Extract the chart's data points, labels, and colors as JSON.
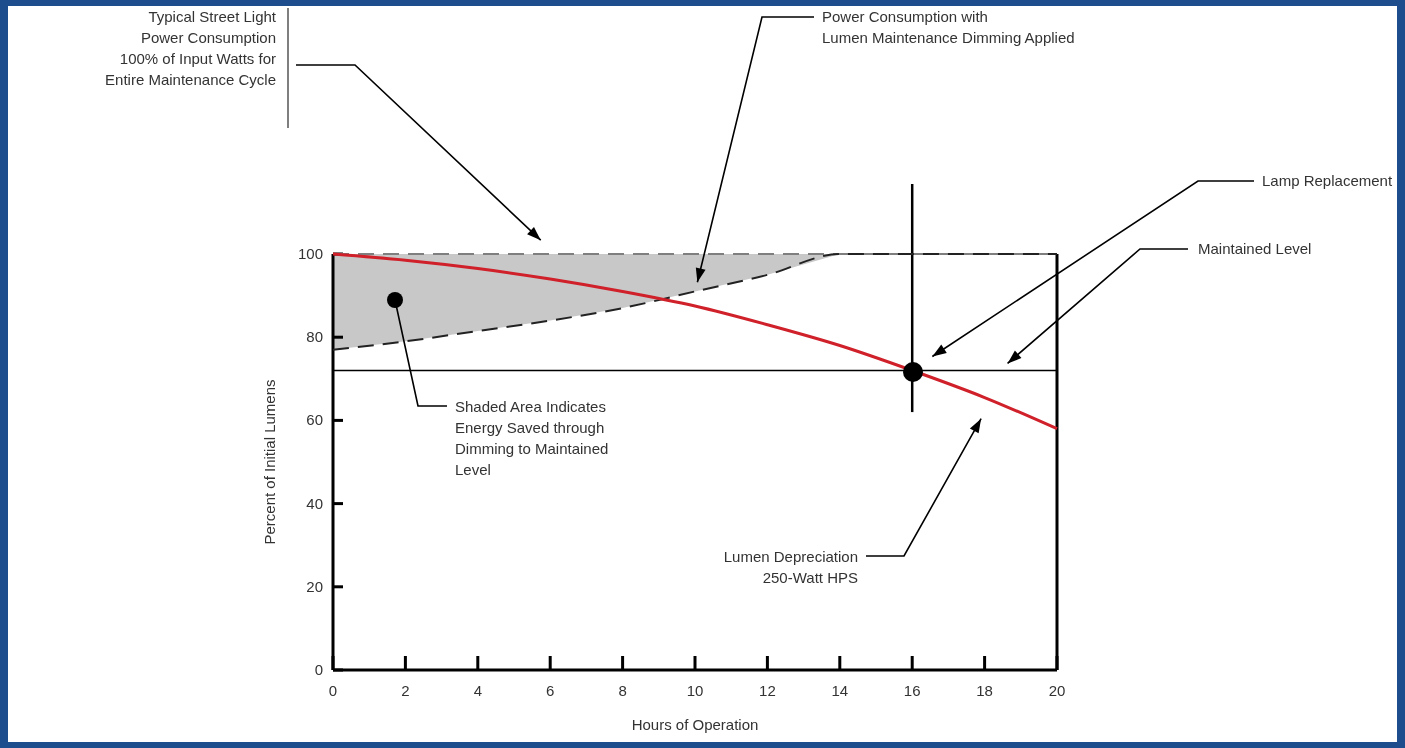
{
  "chart_data": {
    "type": "line",
    "xlabel": "Hours of Operation",
    "ylabel": "Percent of Initial Lumens",
    "x": [
      0,
      2,
      4,
      6,
      8,
      10,
      12,
      14,
      16,
      18,
      20
    ],
    "series": [
      {
        "color": "#7f7f7f",
        "line_style": "dashed",
        "values": [
          100,
          100,
          100,
          100,
          100,
          100,
          100,
          100,
          100,
          100,
          100
        ]
      },
      {
        "color": "#222222",
        "line_style": "dashed",
        "values": [
          77,
          79,
          81.5,
          84,
          87,
          91,
          95,
          100,
          100,
          100,
          100
        ],
        "lower": [
          77,
          79,
          81.5,
          84,
          87,
          91,
          95,
          100,
          null,
          null,
          null
        ],
        "upper": [
          100,
          100,
          100,
          100,
          100,
          100,
          100,
          100,
          null,
          null,
          null
        ]
      },
      {
        "color": "#d0202a",
        "line_style": "solid",
        "values": [
          100,
          98.5,
          96.5,
          94,
          91,
          87.5,
          83,
          78,
          72,
          65.5,
          58
        ]
      }
    ],
    "xlim": [
      0,
      20
    ],
    "xticks": [
      0,
      2,
      4,
      6,
      8,
      10,
      12,
      14,
      16,
      18,
      20
    ],
    "ylim": [
      0,
      100
    ],
    "yticks": [
      0,
      20,
      40,
      60,
      80,
      100
    ],
    "ref_lines": [
      {
        "axis": "y",
        "value": 72
      },
      {
        "axis": "x",
        "value": 16
      }
    ],
    "marker": "none",
    "grid": false,
    "annotations": [
      "Typical Street Light\nPower Consumption\n100% of Input Watts for\nEntire Maintenance Cycle",
      "Power Consumption with\nLumen Maintenance Dimming Applied",
      "Lamp Replacement",
      "Maintained Level",
      "Shaded Area Indicates\nEnergy Saved through\nDimming to Maintained\nLevel",
      "Lumen Depreciation\n250-Watt HPS"
    ]
  }
}
